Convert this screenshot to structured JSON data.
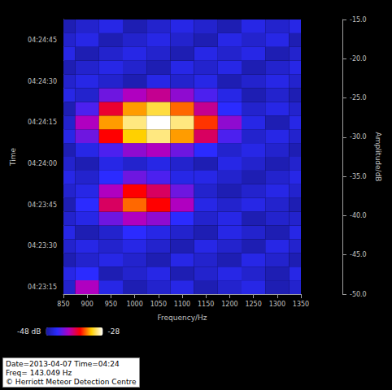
{
  "chart_data": {
    "type": "heatmap",
    "x_label": "Frequency/Hz",
    "y_label": "Time",
    "z_label": "Amplitude/dB",
    "annotations": [
      "Date=2013-04-07 Time=04:24",
      "Freq= 143.049 Hz",
      "© Herriott Meteor Detection Centre"
    ],
    "x": [
      850,
      900,
      950,
      1000,
      1050,
      1100,
      1150,
      1200,
      1250,
      1300,
      1350
    ],
    "categories": [
      "04:23:15",
      null,
      null,
      "04:23:30",
      null,
      null,
      "04:23:45",
      null,
      null,
      "04:24:00",
      null,
      null,
      "04:24:15",
      null,
      null,
      "04:24:30",
      null,
      null,
      "04:24:45",
      null
    ],
    "cells": [
      [
        -46,
        -40,
        -45,
        -47,
        -46,
        -45,
        -47,
        -46,
        -45,
        -47,
        -46
      ],
      [
        -45,
        -44,
        -47,
        -46,
        -45,
        -47,
        -46,
        -45,
        -46,
        -47,
        -45
      ],
      [
        -47,
        -46,
        -45,
        -46,
        -47,
        -45,
        -46,
        -47,
        -45,
        -46,
        -47
      ],
      [
        -46,
        -45,
        -46,
        -45,
        -46,
        -47,
        -45,
        -46,
        -47,
        -45,
        -46
      ],
      [
        -45,
        -47,
        -46,
        -44,
        -45,
        -46,
        -47,
        -45,
        -46,
        -47,
        -45
      ],
      [
        -46,
        -45,
        -42,
        -40,
        -41,
        -44,
        -46,
        -45,
        -47,
        -46,
        -46
      ],
      [
        -47,
        -44,
        -38,
        -34,
        -36,
        -40,
        -45,
        -46,
        -45,
        -46,
        -47
      ],
      [
        -46,
        -45,
        -40,
        -36,
        -38,
        -42,
        -46,
        -47,
        -46,
        -45,
        -46
      ],
      [
        -45,
        -46,
        -44,
        -42,
        -43,
        -45,
        -45,
        -46,
        -47,
        -46,
        -45
      ],
      [
        -46,
        -47,
        -45,
        -46,
        -45,
        -46,
        -47,
        -45,
        -46,
        -47,
        -46
      ],
      [
        -47,
        -45,
        -43,
        -41,
        -40,
        -42,
        -44,
        -46,
        -45,
        -46,
        -47
      ],
      [
        -45,
        -42,
        -36,
        -32,
        -30,
        -33,
        -38,
        -43,
        -46,
        -45,
        -46
      ],
      [
        -46,
        -40,
        -33,
        -30,
        -28,
        -30,
        -35,
        -41,
        -45,
        -47,
        -45
      ],
      [
        -47,
        -43,
        -37,
        -33,
        -31,
        -34,
        -39,
        -44,
        -46,
        -45,
        -46
      ],
      [
        -45,
        -46,
        -42,
        -40,
        -39,
        -41,
        -43,
        -45,
        -47,
        -46,
        -47
      ],
      [
        -46,
        -45,
        -46,
        -47,
        -45,
        -46,
        -45,
        -47,
        -46,
        -45,
        -46
      ],
      [
        -47,
        -46,
        -45,
        -46,
        -47,
        -45,
        -46,
        -45,
        -47,
        -46,
        -45
      ],
      [
        -45,
        -47,
        -46,
        -45,
        -46,
        -47,
        -45,
        -46,
        -45,
        -47,
        -46
      ],
      [
        -46,
        -45,
        -47,
        -46,
        -45,
        -46,
        -47,
        -45,
        -46,
        -45,
        -47
      ],
      [
        -47,
        -46,
        -45,
        -47,
        -46,
        -45,
        -46,
        -47,
        -45,
        -46,
        -45
      ]
    ],
    "xlim": [
      850,
      1350
    ],
    "xticks": [
      850,
      900,
      950,
      1000,
      1050,
      1100,
      1150,
      1200,
      1250,
      1300,
      1350
    ],
    "zlim": [
      -50,
      -15
    ],
    "zticks": [
      {
        "value": -50,
        "label": "-50.0"
      },
      {
        "value": -45,
        "label": "-45.0"
      },
      {
        "value": -40,
        "label": "-40.0"
      },
      {
        "value": -35,
        "label": "-35.0"
      },
      {
        "value": -30,
        "label": "-30.0"
      },
      {
        "value": -25,
        "label": "-25.0"
      },
      {
        "value": -20,
        "label": "-20.0"
      },
      {
        "value": -15,
        "label": "-15.0"
      }
    ],
    "colorbar": {
      "range": [
        -48,
        -28
      ],
      "ticks": [
        {
          "value": -48,
          "label": "-48 dB"
        },
        -28
      ]
    },
    "grid": false
  }
}
